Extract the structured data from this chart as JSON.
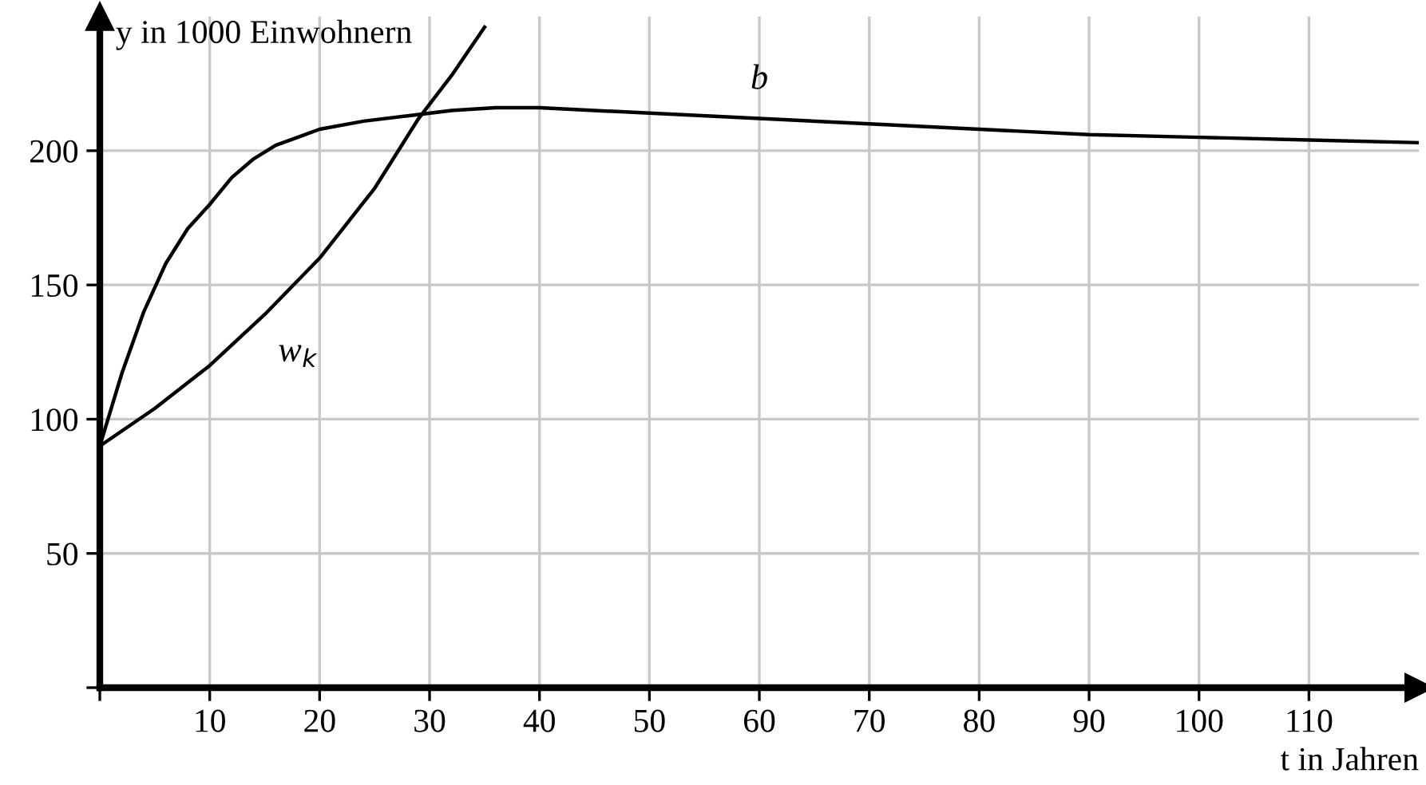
{
  "chart_data": {
    "type": "line",
    "xlabel": "t in Jahren",
    "ylabel": "y in 1000 Einwohnern",
    "xlim": [
      0,
      120
    ],
    "ylim": [
      0,
      250
    ],
    "xticks": [
      {
        "value": 0,
        "label": null
      },
      10,
      20,
      30,
      40,
      50,
      60,
      70,
      80,
      90,
      100,
      110
    ],
    "yticks": [
      {
        "value": 0,
        "label": null
      },
      50,
      100,
      150,
      200
    ],
    "grid": true,
    "marker": "none",
    "line_style": "solid",
    "series": [
      {
        "name": "b",
        "color": "#000000",
        "x": [
          0,
          2,
          4,
          6,
          8,
          10,
          12,
          14,
          16,
          18,
          20,
          24,
          28,
          32,
          36,
          40,
          50,
          60,
          70,
          80,
          90,
          100,
          110,
          120
        ],
        "values": [
          90,
          117,
          140,
          158,
          171,
          180,
          190,
          197,
          202,
          205,
          208,
          211,
          213,
          215,
          216,
          216,
          214,
          212,
          210,
          208,
          206,
          205,
          204,
          203
        ]
      },
      {
        "name": "w$_{k}$",
        "color": "#000000",
        "x": [
          0,
          5,
          10,
          15,
          20,
          25,
          29,
          32,
          35
        ],
        "values": [
          90,
          104,
          120,
          139,
          160,
          186,
          212,
          228,
          246
        ]
      }
    ]
  }
}
